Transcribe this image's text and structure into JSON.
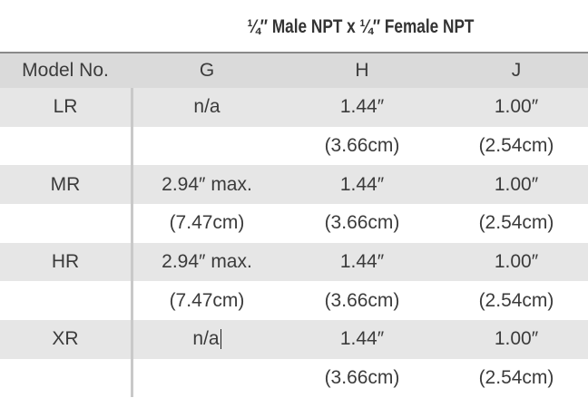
{
  "title": "¼″ Male NPT x ¼″ Female NPT",
  "headers": {
    "model": "Model No.",
    "g": "G",
    "h": "H",
    "j": "J"
  },
  "rows": [
    {
      "model": "LR",
      "g": "n/a",
      "h": "1.44″",
      "j": "1.00″"
    },
    {
      "model": "",
      "g": "",
      "h": "(3.66cm)",
      "j": "(2.54cm)"
    },
    {
      "model": "MR",
      "g": "2.94″ max.",
      "h": "1.44″",
      "j": "1.00″"
    },
    {
      "model": "",
      "g": "(7.47cm)",
      "h": "(3.66cm)",
      "j": "(2.54cm)"
    },
    {
      "model": "HR",
      "g": "2.94″ max.",
      "h": "1.44″",
      "j": "1.00″"
    },
    {
      "model": "",
      "g": "(7.47cm)",
      "h": "(3.66cm)",
      "j": "(2.54cm)"
    },
    {
      "model": "XR",
      "g": "n/a",
      "h": "1.44″",
      "j": "1.00″"
    },
    {
      "model": "",
      "g": "",
      "h": "(3.66cm)",
      "j": "(2.54cm)"
    }
  ],
  "colors": {
    "header_bg": "#dadada",
    "shade_bg": "#e6e6e6",
    "divider": "#c9c9c9"
  }
}
